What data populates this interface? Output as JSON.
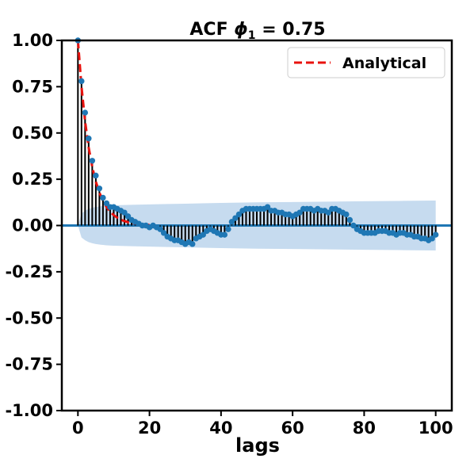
{
  "chart_data": {
    "type": "line",
    "title": "ACF ϕ₁ = 0.75",
    "title_main": "ACF",
    "title_phi": "ϕ",
    "title_sub": "1",
    "title_rest": " = 0.75",
    "xlabel": "lags",
    "ylabel": "",
    "xlim": [
      -4.5,
      104.5
    ],
    "ylim": [
      -1.0,
      1.0
    ],
    "x_ticks": [
      0,
      20,
      40,
      60,
      80,
      100
    ],
    "x_tick_labels": [
      "0",
      "20",
      "40",
      "60",
      "80",
      "100"
    ],
    "y_ticks": [
      1.0,
      0.75,
      0.5,
      0.25,
      0.0,
      -0.25,
      -0.5,
      -0.75,
      -1.0
    ],
    "y_tick_labels": [
      "1.00",
      "0.75",
      "0.50",
      "0.25",
      "0.00",
      "-0.25",
      "-0.50",
      "-0.75",
      "-1.00"
    ],
    "grid": false,
    "legend": {
      "position": "top-right",
      "entries": [
        {
          "label": "Analytical",
          "color": "#e8120e",
          "style": "dashed"
        }
      ]
    },
    "colors": {
      "stem": "#000000",
      "marker": "#1f77b4",
      "zero_line": "#1f77b4",
      "band": "#c6dbef",
      "analytical": "#e8120e"
    },
    "sample_acf": {
      "lags": [
        0,
        1,
        2,
        3,
        4,
        5,
        6,
        7,
        8,
        9,
        10,
        11,
        12,
        13,
        14,
        15,
        16,
        17,
        18,
        19,
        20,
        21,
        22,
        23,
        24,
        25,
        26,
        27,
        28,
        29,
        30,
        31,
        32,
        33,
        34,
        35,
        36,
        37,
        38,
        39,
        40,
        41,
        42,
        43,
        44,
        45,
        46,
        47,
        48,
        49,
        50,
        51,
        52,
        53,
        54,
        55,
        56,
        57,
        58,
        59,
        60,
        61,
        62,
        63,
        64,
        65,
        66,
        67,
        68,
        69,
        70,
        71,
        72,
        73,
        74,
        75,
        76,
        77,
        78,
        79,
        80,
        81,
        82,
        83,
        84,
        85,
        86,
        87,
        88,
        89,
        90,
        91,
        92,
        93,
        94,
        95,
        96,
        97,
        98,
        99,
        100
      ],
      "values": [
        1.0,
        0.78,
        0.61,
        0.47,
        0.35,
        0.27,
        0.2,
        0.15,
        0.12,
        0.1,
        0.1,
        0.09,
        0.08,
        0.07,
        0.05,
        0.03,
        0.02,
        0.01,
        0.0,
        0.0,
        -0.01,
        0.0,
        -0.01,
        -0.02,
        -0.04,
        -0.06,
        -0.07,
        -0.08,
        -0.08,
        -0.09,
        -0.1,
        -0.09,
        -0.1,
        -0.07,
        -0.06,
        -0.05,
        -0.03,
        -0.02,
        -0.03,
        -0.04,
        -0.05,
        -0.05,
        -0.02,
        0.02,
        0.04,
        0.06,
        0.08,
        0.09,
        0.09,
        0.09,
        0.09,
        0.09,
        0.09,
        0.1,
        0.08,
        0.08,
        0.07,
        0.07,
        0.06,
        0.06,
        0.05,
        0.06,
        0.07,
        0.09,
        0.09,
        0.09,
        0.08,
        0.09,
        0.08,
        0.08,
        0.07,
        0.09,
        0.09,
        0.08,
        0.07,
        0.06,
        0.03,
        0.0,
        -0.02,
        -0.03,
        -0.04,
        -0.04,
        -0.04,
        -0.04,
        -0.03,
        -0.03,
        -0.03,
        -0.04,
        -0.04,
        -0.05,
        -0.04,
        -0.04,
        -0.05,
        -0.05,
        -0.06,
        -0.06,
        -0.07,
        -0.07,
        -0.08,
        -0.07,
        -0.05
      ]
    },
    "analytical": {
      "lags": [
        0,
        1,
        2,
        3,
        4,
        5,
        6,
        7,
        8,
        9,
        10,
        11,
        12,
        13,
        14,
        15,
        16,
        17,
        18,
        19,
        20
      ],
      "values": [
        1.0,
        0.75,
        0.5625,
        0.4219,
        0.3164,
        0.2373,
        0.178,
        0.1335,
        0.1001,
        0.0751,
        0.0563,
        0.0422,
        0.0317,
        0.0238,
        0.0178,
        0.0134,
        0.01,
        0.0075,
        0.0056,
        0.0042,
        0.0032
      ]
    },
    "confidence_band": {
      "lags": [
        0,
        1,
        2,
        3,
        4,
        5,
        6,
        7,
        8,
        9,
        10,
        15,
        20,
        25,
        30,
        40,
        50,
        60,
        70,
        80,
        90,
        100
      ],
      "lower": [
        -0.0,
        -0.065,
        -0.08,
        -0.09,
        -0.096,
        -0.1,
        -0.103,
        -0.105,
        -0.107,
        -0.108,
        -0.109,
        -0.112,
        -0.114,
        -0.116,
        -0.118,
        -0.122,
        -0.125,
        -0.127,
        -0.129,
        -0.131,
        -0.133,
        -0.135
      ],
      "upper": [
        0.0,
        0.065,
        0.08,
        0.09,
        0.096,
        0.1,
        0.103,
        0.105,
        0.107,
        0.108,
        0.109,
        0.112,
        0.114,
        0.116,
        0.118,
        0.122,
        0.125,
        0.127,
        0.129,
        0.131,
        0.133,
        0.135
      ]
    }
  }
}
